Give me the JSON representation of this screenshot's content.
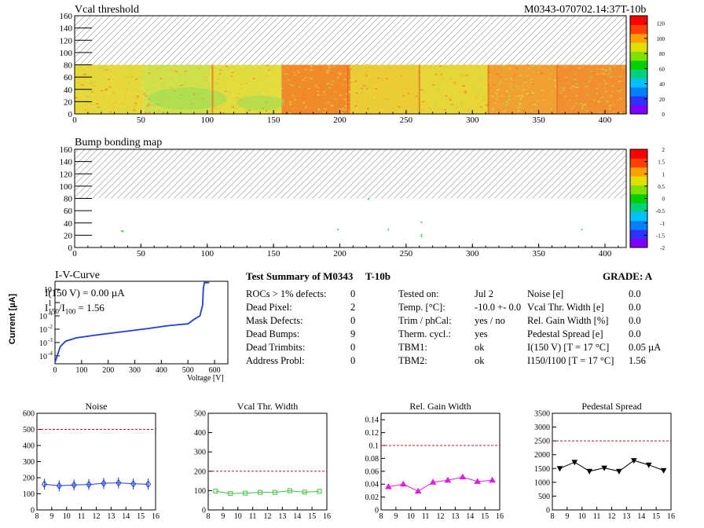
{
  "header": {
    "vcal_title": "Vcal threshold",
    "module_id": "M0343-070702.14:37T-10b"
  },
  "vcal_map": {
    "x_ticks": [
      "0",
      "50",
      "100",
      "150",
      "200",
      "250",
      "300",
      "350",
      "400"
    ],
    "y_ticks": [
      "0",
      "20",
      "40",
      "60",
      "80",
      "100",
      "120",
      "140",
      "160"
    ],
    "colorbar_ticks": [
      "0",
      "20",
      "40",
      "60",
      "80",
      "100",
      "120"
    ],
    "colors": {
      "low": "#7b2cbf",
      "mid": "#22c55e",
      "high": "#e11d1d",
      "hatch": "#9aa4aa"
    }
  },
  "bump_map": {
    "title": "Bump bonding map",
    "x_ticks": [
      "0",
      "50",
      "100",
      "150",
      "200",
      "250",
      "300",
      "350",
      "400"
    ],
    "y_ticks": [
      "0",
      "20",
      "40",
      "60",
      "80",
      "100",
      "120",
      "140",
      "160"
    ],
    "colorbar_ticks": [
      "-2",
      "-1.5",
      "-1",
      "-0.5",
      "0",
      "0.5",
      "1",
      "1.5",
      "2"
    ]
  },
  "iv_curve": {
    "title": "I-V-Curve",
    "ylabel": "Current [µA]",
    "xlabel": "Voltage [V]",
    "annotation_current": "I(150 V) = 0.00 µA",
    "annotation_ratio_prefix": "I",
    "annotation_ratio_sub1": "150",
    "annotation_ratio_mid": "/I",
    "annotation_ratio_sub2": "100",
    "annotation_ratio_value": "=  1.56",
    "x_ticks": [
      "0",
      "100",
      "200",
      "300",
      "400",
      "500",
      "600"
    ],
    "y_tick_exps": [
      "-4",
      "-3",
      "-2",
      "-1"
    ],
    "y_tick_plain": [
      "1",
      "10"
    ],
    "y_tick_base": "10"
  },
  "summary": {
    "title": "Test Summary of M0343",
    "title_suffix": "T-10b",
    "grade": "GRADE:  A",
    "left": [
      {
        "label": "ROCs > 1% defects:",
        "value": "0"
      },
      {
        "label": "Dead Pixel:",
        "value": "2"
      },
      {
        "label": "Mask Defects:",
        "value": "0"
      },
      {
        "label": "Dead Bumps:",
        "value": "9"
      },
      {
        "label": "Dead Trimbits:",
        "value": "0"
      },
      {
        "label": "Address Probl:",
        "value": "0"
      }
    ],
    "middle": [
      {
        "label": "Tested on:",
        "value": "Jul 2"
      },
      {
        "label": "Temp. [°C]:",
        "value": "-10.0 +- 0.0"
      },
      {
        "label": "Trim / phCal:",
        "value": "yes / no"
      },
      {
        "label": "Therm. cycl.:",
        "value": "yes"
      },
      {
        "label": "TBM1:",
        "value": "ok"
      },
      {
        "label": "TBM2:",
        "value": "ok"
      }
    ],
    "right": [
      {
        "label": "Noise [e]",
        "value": "0.0"
      },
      {
        "label": "Vcal Thr. Width [e]",
        "value": "0.0"
      },
      {
        "label": "Rel. Gain Width [%]",
        "value": "0.0"
      },
      {
        "label": "Pedestal Spread [e]",
        "value": "0.0"
      },
      {
        "label": "I(150 V) [T = 17 °C]",
        "value": "0.05 µA"
      },
      {
        "label": "I150/I100  [T = 17 °C]",
        "value": "1.56"
      }
    ]
  },
  "chart_data": [
    {
      "type": "line",
      "title": "Noise",
      "x": [
        8.5,
        9.5,
        10.5,
        11.5,
        12.5,
        13.5,
        14.5,
        15.5
      ],
      "series": [
        {
          "values": [
            160,
            150,
            155,
            158,
            165,
            168,
            162,
            160
          ]
        }
      ],
      "xlim": [
        8,
        16
      ],
      "ylim": [
        0,
        600
      ],
      "limit_line": 500,
      "x_ticks": [
        "8",
        "9",
        "10",
        "11",
        "12",
        "13",
        "14",
        "15",
        "16"
      ],
      "y_ticks": [
        "0",
        "100",
        "200",
        "300",
        "400",
        "500",
        "600"
      ],
      "color": "#1d3fd6",
      "marker": "diamond"
    },
    {
      "type": "line",
      "title": "Vcal Thr. Width",
      "x": [
        8.5,
        9.5,
        10.5,
        11.5,
        12.5,
        13.5,
        14.5,
        15.5
      ],
      "series": [
        {
          "values": [
            97,
            85,
            87,
            91,
            91,
            99,
            92,
            96
          ]
        }
      ],
      "xlim": [
        8,
        16
      ],
      "ylim": [
        0,
        500
      ],
      "limit_line": 200,
      "x_ticks": [
        "8",
        "9",
        "10",
        "11",
        "12",
        "13",
        "14",
        "15",
        "16"
      ],
      "y_ticks": [
        "0",
        "100",
        "200",
        "300",
        "400",
        "500"
      ],
      "color": "#3ec23e",
      "marker": "square"
    },
    {
      "type": "line",
      "title": "Rel. Gain Width",
      "x": [
        8.5,
        9.5,
        10.5,
        11.5,
        12.5,
        13.5,
        14.5,
        15.5
      ],
      "series": [
        {
          "values": [
            0.036,
            0.04,
            0.029,
            0.043,
            0.046,
            0.051,
            0.044,
            0.046
          ]
        }
      ],
      "xlim": [
        8,
        16
      ],
      "ylim": [
        0,
        0.15
      ],
      "limit_line": 0.1,
      "x_ticks": [
        "8",
        "9",
        "10",
        "11",
        "12",
        "13",
        "14",
        "15",
        "16"
      ],
      "y_ticks": [
        "0",
        "0.02",
        "0.04",
        "0.06",
        "0.08",
        "0.1",
        "0.12",
        "0.14"
      ],
      "color": "#e01ee0",
      "marker": "triangle"
    },
    {
      "type": "line",
      "title": "Pedestal Spread",
      "x": [
        8.5,
        9.5,
        10.5,
        11.5,
        12.5,
        13.5,
        14.5,
        15.5
      ],
      "series": [
        {
          "values": [
            1500,
            1730,
            1400,
            1520,
            1400,
            1790,
            1630,
            1430
          ]
        }
      ],
      "xlim": [
        8,
        16
      ],
      "ylim": [
        0,
        3500
      ],
      "limit_line": 2500,
      "x_ticks": [
        "8",
        "9",
        "10",
        "11",
        "12",
        "13",
        "14",
        "15",
        "16"
      ],
      "y_ticks": [
        "0",
        "500",
        "1000",
        "1500",
        "2000",
        "2500",
        "3000",
        "3500"
      ],
      "color": "#000000",
      "marker": "triangle-down"
    }
  ]
}
